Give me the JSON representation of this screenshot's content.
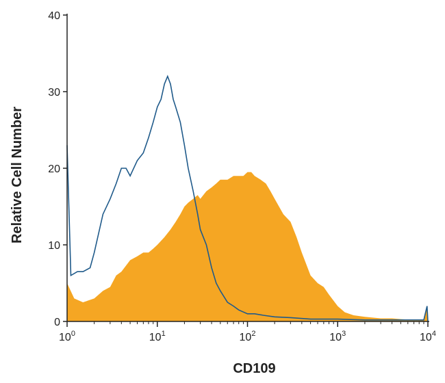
{
  "chart_data": {
    "type": "area",
    "title": "",
    "xlabel": "CD109",
    "ylabel": "Relative Cell Number",
    "x_scale": "log",
    "xlim": [
      1,
      10000
    ],
    "ylim": [
      0,
      40
    ],
    "grid": false,
    "legend": "none",
    "y_ticks": [
      "0",
      "10",
      "20",
      "30",
      "40"
    ],
    "x_ticks": [
      {
        "base": "10",
        "exp": "0"
      },
      {
        "base": "10",
        "exp": "1"
      },
      {
        "base": "10",
        "exp": "2"
      },
      {
        "base": "10",
        "exp": "3"
      },
      {
        "base": "10",
        "exp": "4"
      }
    ],
    "colors": {
      "filled": "#F5A623",
      "outline": "#1F5A8A",
      "axis": "#222222"
    },
    "series": [
      {
        "style": "filled",
        "x": [
          1,
          1.2,
          1.5,
          2,
          2.5,
          3,
          3.5,
          4,
          5,
          6,
          7,
          8,
          9,
          10,
          12,
          14,
          16,
          18,
          20,
          22,
          25,
          28,
          30,
          35,
          40,
          45,
          50,
          60,
          70,
          80,
          90,
          100,
          110,
          120,
          140,
          160,
          180,
          200,
          250,
          300,
          350,
          400,
          500,
          600,
          700,
          800,
          1000,
          1200,
          1500,
          2000,
          3000,
          4000,
          5000,
          7000,
          9000,
          9800,
          10000
        ],
        "y": [
          5,
          3,
          2.5,
          3,
          4,
          4.5,
          6,
          6.5,
          8,
          8.5,
          9,
          9,
          9.5,
          10,
          11,
          12,
          13,
          14,
          15,
          15.5,
          16,
          16.5,
          16,
          17,
          17.5,
          18,
          18.5,
          18.5,
          19,
          19,
          19,
          19.5,
          19.5,
          19,
          18.5,
          18,
          17,
          16,
          14,
          13,
          11,
          9,
          6,
          5,
          4.5,
          3.5,
          2,
          1.2,
          0.8,
          0.6,
          0.4,
          0.4,
          0.3,
          0.2,
          0.2,
          2,
          0
        ]
      },
      {
        "style": "outline",
        "x": [
          1,
          1.1,
          1.3,
          1.5,
          1.8,
          2,
          2.5,
          3,
          3.5,
          4,
          4.5,
          5,
          6,
          7,
          8,
          9,
          10,
          11,
          12,
          13,
          14,
          15,
          16,
          18,
          20,
          22,
          25,
          28,
          30,
          35,
          40,
          45,
          50,
          60,
          70,
          80,
          100,
          120,
          150,
          200,
          300,
          500,
          1000,
          2000,
          5000,
          9000,
          9800,
          10000
        ],
        "y": [
          23,
          6,
          6.5,
          6.5,
          7,
          9,
          14,
          16,
          18,
          20,
          20,
          19,
          21,
          22,
          24,
          26,
          28,
          29,
          31,
          32,
          31,
          29,
          28,
          26,
          23,
          20,
          17,
          14,
          12,
          10,
          7,
          5,
          4,
          2.5,
          2,
          1.5,
          1,
          1,
          0.8,
          0.6,
          0.5,
          0.3,
          0.3,
          0.2,
          0.2,
          0.2,
          2,
          0
        ]
      }
    ]
  }
}
